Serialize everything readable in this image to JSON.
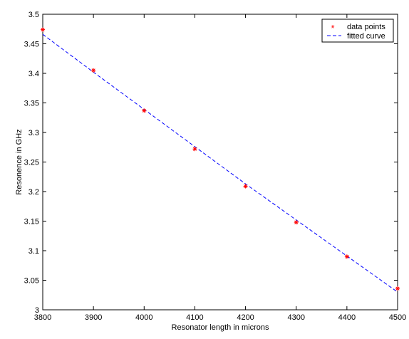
{
  "chart_data": {
    "type": "scatter",
    "title": "",
    "xlabel": "Resonator length in microns",
    "ylabel": "Resonence in GHz",
    "xlim": [
      3800,
      4500
    ],
    "ylim": [
      3.0,
      3.5
    ],
    "xticks": [
      "3800",
      "3900",
      "4000",
      "4100",
      "4200",
      "4300",
      "4400",
      "4500"
    ],
    "yticks": [
      "3",
      "3.05",
      "3.1",
      "3.15",
      "3.2",
      "3.25",
      "3.3",
      "3.35",
      "3.4",
      "3.45",
      "3.5"
    ],
    "grid": false,
    "legend_position": "top-right",
    "series": [
      {
        "name": "data points",
        "kind": "markers",
        "marker": "*",
        "color": "#ff0000",
        "x": [
          3800,
          3900,
          4000,
          4100,
          4200,
          4300,
          4400,
          4500
        ],
        "y": [
          3.474,
          3.405,
          3.337,
          3.272,
          3.209,
          3.148,
          3.09,
          3.036
        ]
      },
      {
        "name": "fitted curve",
        "kind": "dashed-line",
        "color": "#0000ff",
        "x": [
          3800,
          3900,
          4000,
          4100,
          4200,
          4300,
          4400,
          4500
        ],
        "y": [
          3.466,
          3.402,
          3.339,
          3.276,
          3.213,
          3.152,
          3.091,
          3.03
        ]
      }
    ]
  }
}
